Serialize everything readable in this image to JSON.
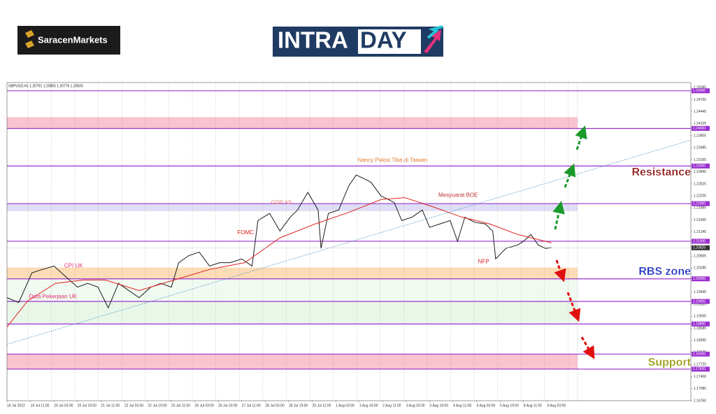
{
  "logos": {
    "broker": "SaracenMarkets",
    "intra": "INTRA",
    "day": "DAY"
  },
  "chart_data": {
    "type": "line",
    "header": "GBPUSD,H1  1.20791 1.20855 1.20776 1.20826",
    "xlim": [
      0,
      466
    ],
    "ylim": [
      1.1676,
      1.2522
    ],
    "grid": "x",
    "xticks": [
      {
        "value": 0,
        "label": "18 Jul 2022"
      },
      {
        "value": 16,
        "label": "19 Jul 11:00"
      },
      {
        "value": 32,
        "label": "20 Jul 03:00"
      },
      {
        "value": 48,
        "label": "20 Jul 19:00"
      },
      {
        "value": 64,
        "label": "21 Jul 11:00"
      },
      {
        "value": 80,
        "label": "22 Jul 03:00"
      },
      {
        "value": 96,
        "label": "22 Jul 19:00"
      },
      {
        "value": 112,
        "label": "25 Jul 11:00"
      },
      {
        "value": 128,
        "label": "26 Jul 03:00"
      },
      {
        "value": 144,
        "label": "26 Jul 19:00"
      },
      {
        "value": 160,
        "label": "27 Jul 11:00"
      },
      {
        "value": 176,
        "label": "28 Jul 03:00"
      },
      {
        "value": 192,
        "label": "28 Jul 19:00"
      },
      {
        "value": 208,
        "label": "29 Jul 11:00"
      },
      {
        "value": 224,
        "label": "1 Aug 03:00"
      },
      {
        "value": 240,
        "label": "1 Aug 19:00"
      },
      {
        "value": 256,
        "label": "2 Aug 11:00"
      },
      {
        "value": 272,
        "label": "3 Aug 03:00"
      },
      {
        "value": 288,
        "label": "3 Aug 19:00"
      },
      {
        "value": 304,
        "label": "4 Aug 11:00"
      },
      {
        "value": 320,
        "label": "5 Aug 03:00"
      },
      {
        "value": 336,
        "label": "5 Aug 19:00"
      },
      {
        "value": 352,
        "label": "8 Aug 11:00"
      },
      {
        "value": 368,
        "label": "9 Aug 03:00"
      }
    ],
    "yticks": [
      1.25085,
      1.24765,
      1.24445,
      1.24125,
      1.23805,
      1.23485,
      1.23165,
      1.22845,
      1.22525,
      1.22205,
      1.21885,
      1.21565,
      1.21245,
      1.20605,
      1.20285,
      1.19645,
      1.19325,
      1.19005,
      1.18685,
      1.18365,
      1.18045,
      {
        "value": 1.1772,
        "label": "1.17720"
      },
      {
        "value": 1.174,
        "label": "1.17400"
      },
      {
        "value": 1.1708,
        "label": "1.17080"
      },
      {
        "value": 1.1676,
        "label": "1.16760"
      }
    ],
    "zones": [
      {
        "from": 1.24,
        "to": 1.243,
        "color": "#f9c3cf"
      },
      {
        "from": 1.218,
        "to": 1.22,
        "color": "#dedef6"
      },
      {
        "from": 1.2,
        "to": 1.203,
        "color": "#fcdcb6"
      },
      {
        "from": 1.194,
        "to": 1.2,
        "color": "#f1faf1"
      },
      {
        "from": 1.188,
        "to": 1.194,
        "color": "#e9f7e9"
      },
      {
        "from": 1.176,
        "to": 1.18,
        "color": "#f9c3cf"
      }
    ],
    "levels": [
      {
        "value": 1.25,
        "label": "1.25000"
      },
      {
        "value": 1.24,
        "label": "1.24000"
      },
      {
        "value": 1.23,
        "label": "1.23000"
      },
      {
        "value": 1.22,
        "label": "1.22000"
      },
      {
        "value": 1.21,
        "label": "1.21000"
      },
      {
        "value": 1.2,
        "label": "1.20000"
      },
      {
        "value": 1.194,
        "label": "1.19400"
      },
      {
        "value": 1.188,
        "label": "1.18800"
      },
      {
        "value": 1.18,
        "label": "1.18000"
      },
      {
        "value": 1.176,
        "label": "1.17600"
      }
    ],
    "level_color": "#9b30d0",
    "current_price": 1.20826,
    "series": [
      {
        "color": "#1a1a1a",
        "style": "solid",
        "x": [
          0,
          8,
          17,
          24,
          32,
          40,
          48,
          55,
          62,
          69,
          76,
          83,
          90,
          98,
          105,
          112,
          117,
          124,
          131,
          138,
          145,
          152,
          160,
          167,
          171,
          179,
          186,
          193,
          198,
          205,
          212,
          214,
          219,
          226,
          233,
          238,
          243,
          248,
          255,
          260,
          264,
          269,
          276,
          283,
          288,
          295,
          302,
          307,
          312,
          319,
          326,
          331,
          333,
          340,
          348,
          352,
          357,
          362,
          367,
          371
        ],
        "values": [
          1.195,
          1.1937,
          1.2016,
          1.2025,
          1.2034,
          1.2006,
          1.1978,
          1.1988,
          1.1978,
          1.1923,
          1.1988,
          1.1969,
          1.195,
          1.1978,
          1.1988,
          1.1978,
          1.2043,
          1.2062,
          1.2071,
          1.2034,
          1.2043,
          1.2043,
          1.2053,
          1.2034,
          1.2155,
          1.2174,
          1.2127,
          1.2164,
          1.2183,
          1.223,
          1.2183,
          1.2081,
          1.2174,
          1.2183,
          1.2248,
          1.2276,
          1.2267,
          1.2257,
          1.222,
          1.2211,
          1.2202,
          1.2155,
          1.2164,
          1.2183,
          1.2137,
          1.2146,
          1.2155,
          1.21,
          1.2164,
          1.215,
          1.2146,
          1.2127,
          1.2053,
          1.2081,
          1.209,
          1.21,
          1.2118,
          1.209,
          1.2081,
          1.2083
        ]
      },
      {
        "color": "#e02020",
        "style": "solid",
        "x": [
          0,
          14,
          33,
          52,
          67,
          90,
          114,
          138,
          162,
          186,
          210,
          233,
          255,
          271,
          290,
          310,
          329,
          348,
          371
        ],
        "values": [
          1.1872,
          1.1941,
          1.1988,
          1.1997,
          1.1997,
          1.1969,
          1.1997,
          1.2025,
          1.2043,
          1.2109,
          1.2146,
          1.2177,
          1.2211,
          1.2216,
          1.2192,
          1.2164,
          1.2146,
          1.2118,
          1.2096
        ]
      },
      {
        "color": "#3d8fc0",
        "style": "dotted",
        "x": [
          0,
          466
        ],
        "values": [
          1.1826,
          1.2369
        ]
      }
    ],
    "annotations": [
      {
        "text": "Nancy Pelosi Tiba di Taiwan",
        "x": 239,
        "y": 1.2315,
        "color": "#e07a30"
      },
      {
        "text": "GDP AS",
        "x": 180,
        "y": 1.2202,
        "color": "#f08080"
      },
      {
        "text": "FOMC",
        "x": 157,
        "y": 1.2122,
        "color": "#e02020"
      },
      {
        "text": "Mesyuarat BOE",
        "x": 294,
        "y": 1.2222,
        "color": "#c03030"
      },
      {
        "text": "NFP",
        "x": 321,
        "y": 1.2045,
        "color": "#e02020"
      },
      {
        "text": "CPI UK",
        "x": 39,
        "y": 1.2034,
        "color": "#e0307a"
      },
      {
        "text": "Data Pekerjaan UK",
        "x": 15,
        "y": 1.1952,
        "color": "#e0307a"
      }
    ],
    "zone_labels": [
      {
        "text": "Resistance",
        "color": "#8b1010"
      },
      {
        "text": "RBS zone",
        "color": "#1a2fc0"
      },
      {
        "text": "Support",
        "color": "#9a9a10"
      }
    ]
  }
}
